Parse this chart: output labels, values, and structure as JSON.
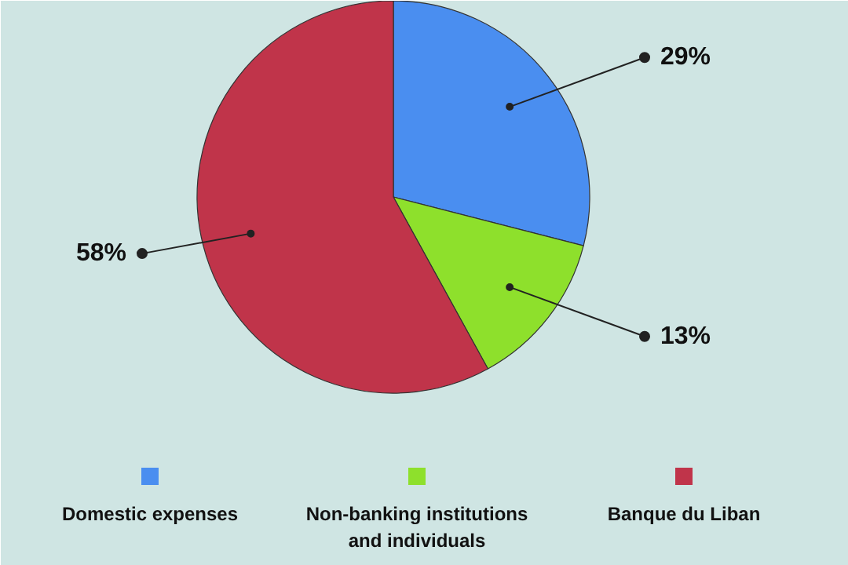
{
  "chart_data": {
    "type": "pie",
    "categories": [
      "Domestic expenses",
      "Non-banking institutions and individuals",
      "Banque du Liban"
    ],
    "values": [
      29,
      13,
      58
    ],
    "colors": [
      "#4a8ef0",
      "#8ee02c",
      "#c0344a"
    ],
    "value_labels": [
      "29%",
      "13%",
      "58%"
    ],
    "legend": "bottom"
  }
}
